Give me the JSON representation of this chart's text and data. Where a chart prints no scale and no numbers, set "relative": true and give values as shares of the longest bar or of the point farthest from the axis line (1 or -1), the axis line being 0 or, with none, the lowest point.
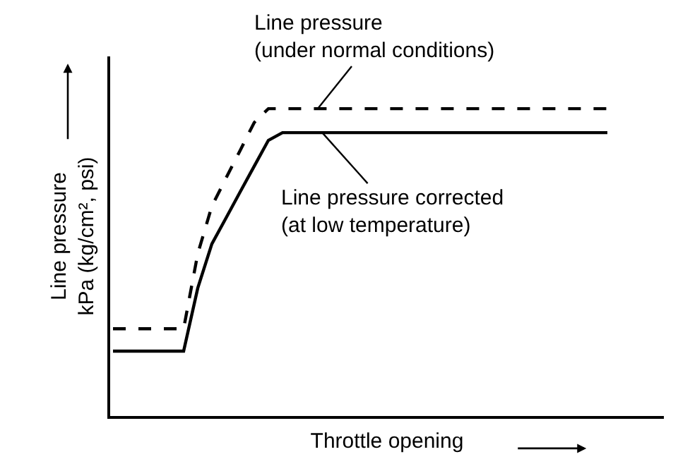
{
  "chart_data": {
    "type": "line",
    "relative": true,
    "xlabel": "Throttle opening",
    "ylabel": "Line pressure\nkPa (kg/cm², psi)",
    "grid": false,
    "legend": false,
    "marker": "none",
    "categories": [
      null,
      null,
      null,
      null,
      null,
      null,
      null,
      null,
      null,
      null,
      null,
      null,
      null,
      null,
      null,
      null,
      null,
      null,
      null,
      null,
      null,
      null,
      null,
      null,
      null,
      null,
      null,
      null,
      null,
      null,
      null,
      null,
      null,
      null,
      null,
      null
    ],
    "series": [
      {
        "color": "#000000",
        "line_style": "dashed",
        "values": [
          0.284,
          0.284,
          0.284,
          0.284,
          0.284,
          0.284,
          0.528,
          0.683,
          0.774,
          0.864,
          0.955,
          1,
          1,
          1,
          1,
          1,
          1,
          1,
          1,
          1,
          1,
          1,
          1,
          1,
          1,
          1,
          1,
          1,
          1,
          1,
          1,
          1,
          1,
          1,
          1,
          1
        ]
      },
      {
        "color": "#000000",
        "line_style": "solid",
        "values": [
          0.211,
          0.211,
          0.211,
          0.211,
          0.211,
          0.211,
          0.416,
          0.56,
          0.644,
          0.729,
          0.813,
          0.897,
          0.922,
          0.922,
          0.922,
          0.922,
          0.922,
          0.922,
          0.922,
          0.922,
          0.922,
          0.922,
          0.922,
          0.922,
          0.922,
          0.922,
          0.922,
          0.922,
          0.922,
          0.922,
          0.922,
          0.922,
          0.922,
          0.922,
          0.922,
          0.922
        ]
      }
    ],
    "annotations": [
      "Line pressure\n(under normal conditions)",
      "Line pressure corrected\n(at low temperature)"
    ]
  }
}
